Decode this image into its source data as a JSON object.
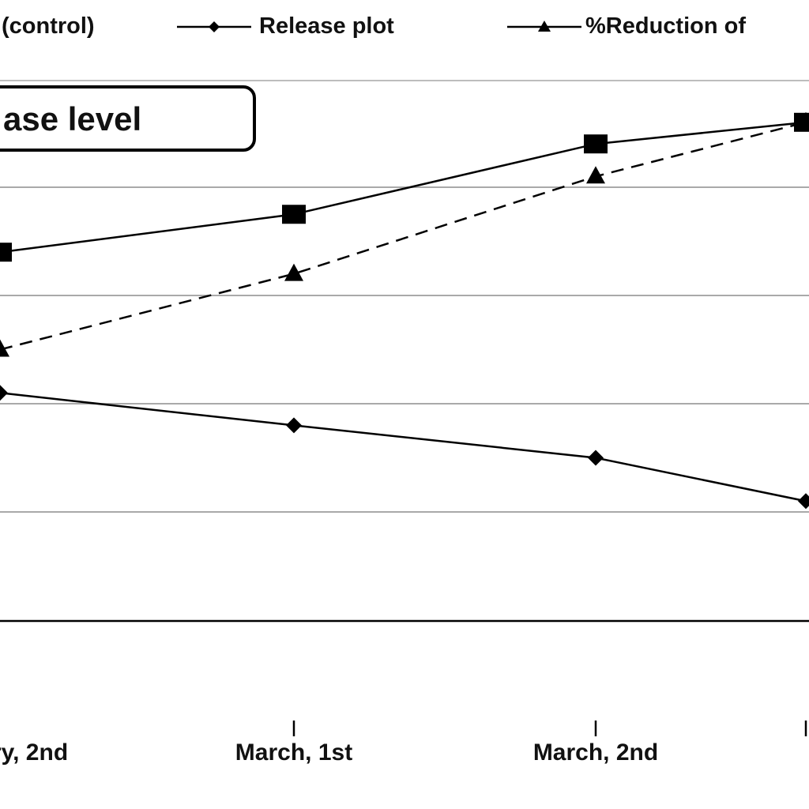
{
  "legend": {
    "items": [
      {
        "label": "(control)",
        "series_key": "control"
      },
      {
        "label": "Release plot",
        "series_key": "release"
      },
      {
        "label": "%Reduction of",
        "series_key": "reduction"
      }
    ]
  },
  "title_box": {
    "text": "ase level"
  },
  "chart_data": {
    "type": "line",
    "categories": [
      "ry, 2nd",
      "March, 1st",
      "March, 2nd",
      ""
    ],
    "ylim": [
      0,
      6
    ],
    "grid": true,
    "legend_position": "top",
    "series": [
      {
        "key": "control",
        "marker": "square",
        "dash": "solid",
        "color": "#000000",
        "values": [
          4.4,
          4.75,
          5.4,
          5.6
        ]
      },
      {
        "key": "reduction",
        "marker": "triangle",
        "dash": "dashed",
        "color": "#000000",
        "values": [
          3.5,
          4.2,
          5.1,
          5.6
        ]
      },
      {
        "key": "release",
        "marker": "diamond",
        "dash": "solid",
        "color": "#000000",
        "values": [
          3.1,
          2.8,
          2.5,
          2.1
        ]
      }
    ]
  }
}
